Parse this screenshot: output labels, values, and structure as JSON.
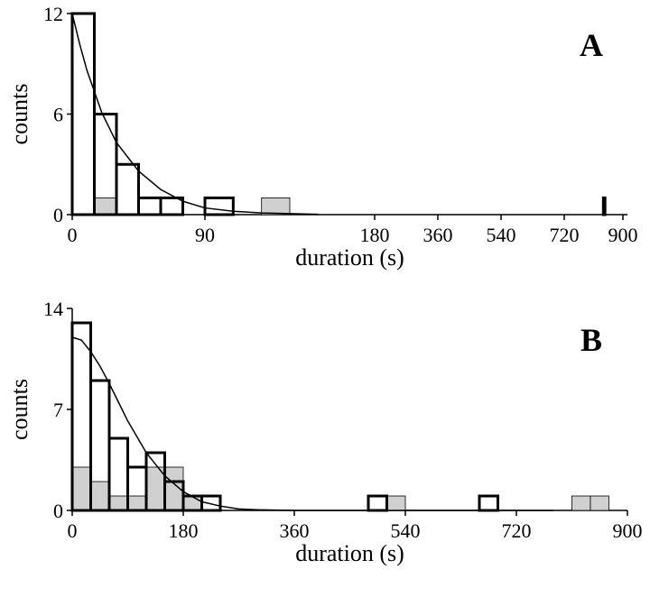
{
  "chart_data": [
    {
      "type": "histogram",
      "label": "A",
      "xlabel": "duration (s)",
      "ylabel": "counts",
      "xlim": [
        0,
        900
      ],
      "ylim": [
        0,
        12
      ],
      "xticks": [
        0,
        90,
        180,
        360,
        540,
        720,
        900
      ],
      "yticks": [
        0,
        6,
        12
      ],
      "series": [
        {
          "color": "#d0d0d0",
          "bins": [
            0,
            15,
            30,
            45,
            60,
            75,
            90,
            105,
            120,
            135
          ],
          "values": [
            0,
            1,
            0,
            0,
            0,
            0,
            0,
            0,
            1
          ]
        },
        {
          "color": "none",
          "bins": [
            0,
            15,
            30,
            45,
            60,
            75,
            90,
            105,
            120,
            135
          ],
          "values": [
            12,
            6,
            3,
            1,
            1,
            0,
            1,
            0,
            0
          ]
        },
        {
          "color": "none",
          "bins": [
            840,
            845
          ],
          "values": [
            1
          ]
        }
      ],
      "fit": {
        "x": [
          0,
          5,
          10,
          20,
          30,
          45,
          60,
          75,
          90,
          105,
          120,
          150
        ],
        "y": [
          12,
          10.2,
          8.6,
          6.1,
          4.3,
          2.6,
          1.5,
          0.8,
          0.4,
          0.2,
          0.1,
          0.02
        ]
      }
    },
    {
      "type": "histogram",
      "label": "B",
      "xlabel": "duration (s)",
      "ylabel": "counts",
      "xlim": [
        0,
        900
      ],
      "ylim": [
        0,
        14
      ],
      "xticks": [
        0,
        180,
        360,
        540,
        720,
        900
      ],
      "yticks": [
        0,
        7,
        14
      ],
      "series": [
        {
          "color": "#d0d0d0",
          "bins": [
            0,
            30,
            60,
            90,
            120,
            150,
            180,
            210,
            240,
            270,
            300,
            330,
            360,
            390,
            420,
            450,
            480,
            510,
            540,
            570,
            600,
            630,
            660,
            690,
            720,
            750,
            780,
            810,
            840,
            870
          ],
          "values": [
            3,
            2,
            1,
            1,
            3,
            3,
            1,
            0,
            0,
            0,
            0,
            0,
            0,
            0,
            0,
            0,
            0,
            1,
            0,
            0,
            0,
            0,
            0,
            0,
            0,
            0,
            0,
            1,
            1
          ]
        },
        {
          "color": "none",
          "bins": [
            0,
            30,
            60,
            90,
            120,
            150,
            180,
            210,
            240,
            270,
            300,
            330,
            360,
            390,
            420,
            450,
            480,
            510,
            540,
            570,
            600,
            630,
            660,
            690,
            720,
            750,
            780,
            810,
            840,
            870
          ],
          "values": [
            13,
            9,
            5,
            3,
            4,
            2,
            1,
            1,
            0,
            0,
            0,
            0,
            0,
            0,
            0,
            0,
            1,
            0,
            0,
            0,
            0,
            0,
            1,
            0,
            0,
            0,
            0,
            0,
            0
          ]
        }
      ],
      "fit": {
        "x": [
          0,
          15,
          30,
          45,
          60,
          75,
          90,
          120,
          150,
          180,
          210,
          240,
          270,
          300,
          360,
          500,
          780
        ],
        "y": [
          12,
          11.8,
          11,
          10,
          8.8,
          7.5,
          6.2,
          4,
          2.4,
          1.3,
          0.6,
          0.3,
          0.1,
          0.05,
          0,
          0,
          0
        ]
      }
    }
  ]
}
